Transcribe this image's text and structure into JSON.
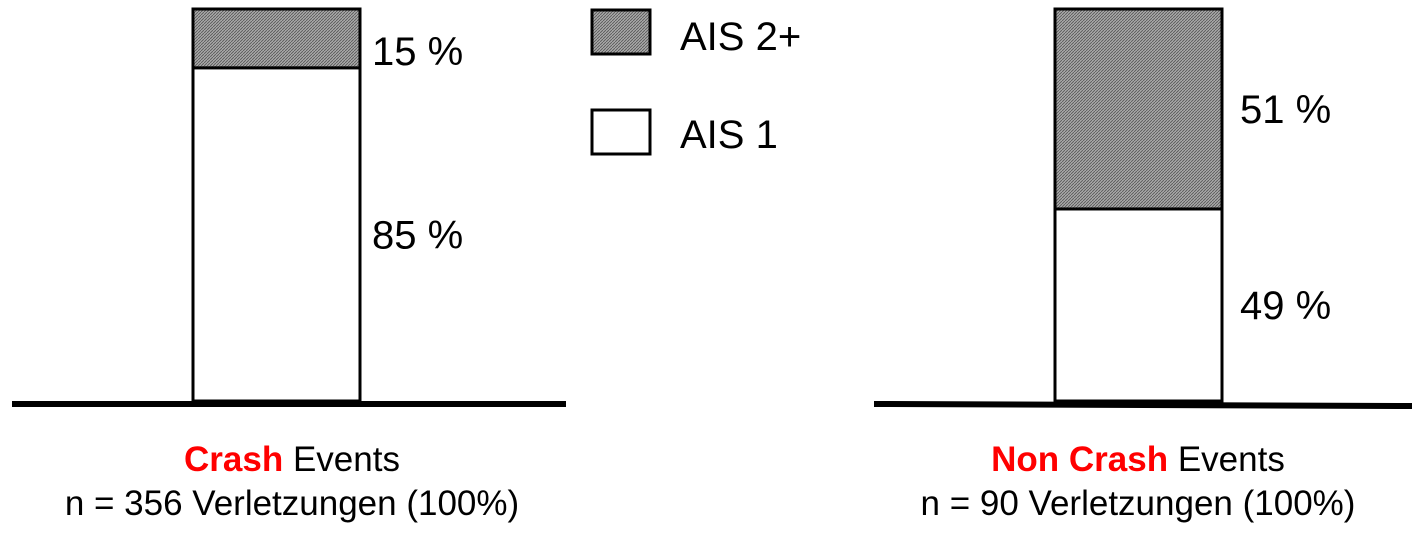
{
  "chart_data": {
    "type": "bar",
    "stacked": true,
    "unit": "%",
    "series": [
      {
        "name": "AIS 1",
        "color": "#ffffff",
        "pattern": "none"
      },
      {
        "name": "AIS 2+",
        "color": "#a0a0a0",
        "pattern": "dense-hatch"
      }
    ],
    "charts": [
      {
        "id": "crash",
        "label_highlight": "Crash",
        "label_rest": " Events",
        "subtitle": "n = 356 Verletzungen (100%)",
        "values": {
          "AIS 1": 85,
          "AIS 2+": 15
        },
        "labels": {
          "AIS 1": "85 %",
          "AIS 2+": "15 %"
        }
      },
      {
        "id": "noncrash",
        "label_highlight": "Non Crash",
        "label_rest": " Events",
        "subtitle": "n = 90 Verletzungen (100%)",
        "values": {
          "AIS 1": 49,
          "AIS 2+": 51
        },
        "labels": {
          "AIS 1": "49 %",
          "AIS 2+": "51 %"
        }
      }
    ],
    "legend": [
      {
        "label": "AIS 2+",
        "icon": "hatched-square-icon"
      },
      {
        "label": "AIS 1",
        "icon": "white-square-icon"
      }
    ],
    "colors": {
      "accent": "#ff0000",
      "hatch_fill": "#a0a0a0",
      "line": "#000000"
    }
  }
}
